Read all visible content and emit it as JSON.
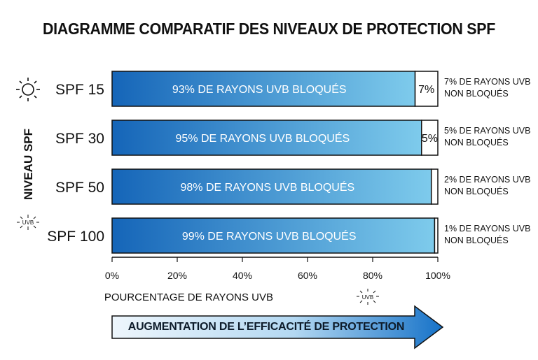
{
  "title": "DIAGRAMME COMPARATIF DES NIVEAUX DE PROTECTION SPF",
  "banner": "AUGMENTATION DE L’EFFICACITÉ DE PROTECTION",
  "icons": {
    "sun": "sun-icon",
    "uvb": "uvb-icon"
  },
  "colors": {
    "bar_dark": "#1565b8",
    "bar_light": "#7ecbec",
    "border": "#111111",
    "banner_light": "#e6f2fb",
    "banner_dark": "#1672c8"
  },
  "chart_data": {
    "type": "bar",
    "orientation": "horizontal",
    "stacked": true,
    "categories": [
      "SPF 15",
      "SPF 30",
      "SPF 50",
      "SPF 100"
    ],
    "series": [
      {
        "values": [
          93,
          95,
          98,
          99
        ]
      },
      {
        "values": [
          7,
          5,
          2,
          1
        ]
      }
    ],
    "bar_labels": [
      "93% DE RAYONS UVB BLOQUÉS",
      "95% DE RAYONS UVB BLOQUÉS",
      "98% DE RAYONS UVB BLOQUÉS",
      "99% DE RAYONS UVB BLOQUÉS"
    ],
    "remainder_labels": [
      "7%",
      "5%",
      "",
      ""
    ],
    "side_notes": [
      [
        "7% DE RAYONS UVB",
        "NON BLOQUÉS"
      ],
      [
        "5% DE RAYONS UVB",
        "NON BLOQUÉS"
      ],
      [
        "2% DE RAYONS UVB",
        "NON BLOQUÉS"
      ],
      [
        "1% DE RAYONS UVB",
        "NON BLOQUÉS"
      ]
    ],
    "xlabel": "POURCENTAGE DE RAYONS UVB",
    "ylabel": "NIVEAU SPF",
    "xlim": [
      0,
      100
    ],
    "xticks": [
      "0%",
      "20%",
      "40%",
      "60%",
      "80%",
      "100%"
    ],
    "uvb_icon_text": "UVB",
    "grid": false
  }
}
